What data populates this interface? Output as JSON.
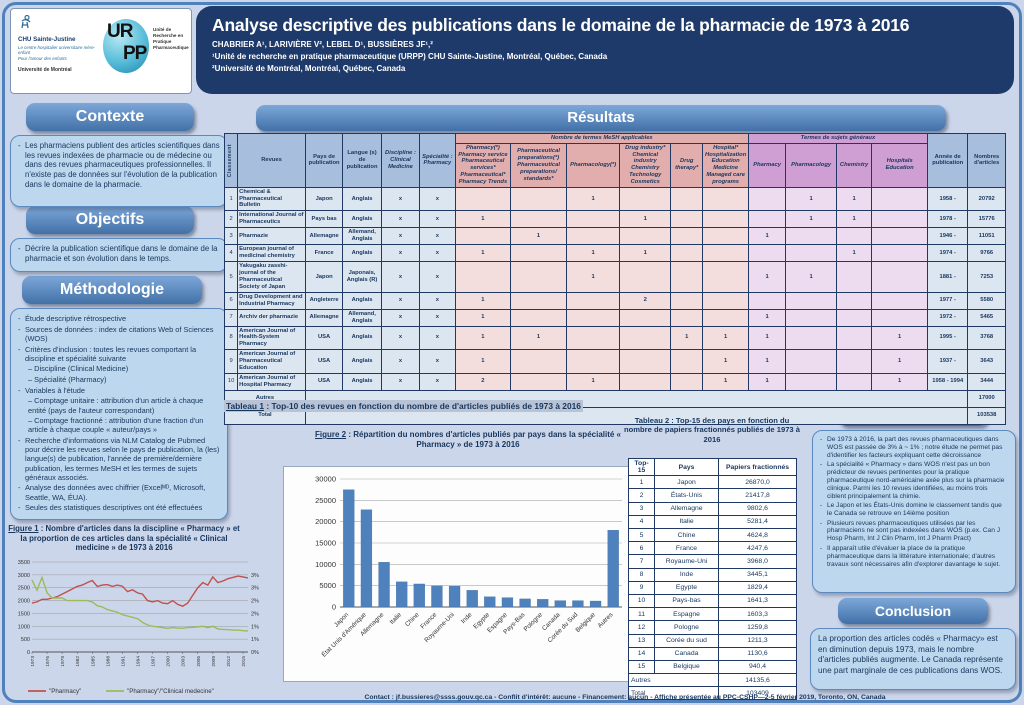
{
  "header": {
    "title": "Analyse descriptive des publications dans le domaine de la pharmacie de 1973 à 2016",
    "authors": "CHABRIER A¹, LARIVIÈRE V², LEBEL D¹, BUSSIÈRES JF¹,²",
    "affiliation1": "¹Unité de recherche en pratique pharmaceutique (URPP) CHU Sainte-Justine, Montréal, Québec, Canada",
    "affiliation2": "²Université de Montréal, Montréal, Québec, Canada",
    "logo": {
      "chu_name": "CHU Sainte-Justine",
      "chu_sub": "Le centre hospitalier universitaire mère-enfant",
      "chu_tag": "Pour l'amour des enfants",
      "udem": "Université de Montréal",
      "urpp_top": "UR",
      "urpp_bottom": "PP",
      "urpp_name": "Unité de Recherche en Pratique Pharmaceutique"
    }
  },
  "contexte": {
    "heading": "Contexte",
    "bullets": [
      "Les pharmaciens publient des articles scientifiques dans les revues indexées de pharmacie ou de médecine ou dans des revues pharmaceutiques professionnelles. Il n'existe pas de données sur l'évolution de la publication dans le domaine de la pharmacie."
    ]
  },
  "objectifs": {
    "heading": "Objectifs",
    "bullets": [
      "Décrire la publication scientifique dans le domaine de la pharmacie et son  évolution dans le temps."
    ]
  },
  "methodologie": {
    "heading": "Méthodologie",
    "items": [
      {
        "t": "Étude descriptive rétrospective",
        "indent": 0
      },
      {
        "t": "Sources de données : index de citations Web of Sciences (WOS)",
        "indent": 0
      },
      {
        "t": "Critères d'inclusion : toutes les revues comportant la discipline et spécialité suivante",
        "indent": 0
      },
      {
        "t": "– Discipline (Clinical Medicine)",
        "indent": 1
      },
      {
        "t": "– Spécialité (Pharmacy)",
        "indent": 1
      },
      {
        "t": "Variables à l'étude",
        "indent": 0
      },
      {
        "t": "– Comptage unitaire : attribution d'un article à chaque entité (pays de l'auteur correspondant)",
        "indent": 1
      },
      {
        "t": "– Comptage fractionné : attribution d'une fraction d'un article à chaque couple « auteur/pays »",
        "indent": 1
      },
      {
        "t": "Recherche d'informations via NLM Catalog de Pubmed pour décrire les revues selon le pays de publication, la (les) langue(s) de publication,  l'année de première/dernière publication, les termes MeSH et les termes de sujets généraux associés.",
        "indent": 0
      },
      {
        "t": "Analyse des données avec chiffrier (Excelᴹᴰ, Microsoft, Seattle, WA, ÉUA).",
        "indent": 0
      },
      {
        "t": "Seules des statistiques descriptives ont été effectuées",
        "indent": 0
      }
    ]
  },
  "resultats": {
    "heading": "Résultats"
  },
  "discussion": {
    "heading": "Discussion",
    "bullets": [
      "De 1973 à 2016, la part des revues pharmaceutiques dans WOS est passée de 3% à ~ 1% ; notre étude ne permet pas d'identifier les facteurs expliquant cette décroissance",
      "La spécialité « Pharmacy » dans WOS n'est pas un bon prédicteur de revues pertinentes pour la pratique pharmaceutique nord-américaine axée plus sur la pharmacie clinique.  Parmi les 10  revues identifiées, au moins trois ciblent principalement la chimie.",
      "Le Japon et les États-Unis domine le classement tandis que le Canada se retrouve en 14ième position",
      "Plusieurs revues pharmaceutiques utilisées par les pharmaciens ne sont pas indexées dans WOS (p.ex. Can J Hosp Pharm, Int J Clin Pharm, Int J Pharm Pract)",
      "Il apparaît utile d'évaluer la place de la pratique pharmaceutique dans la littérature internationale; d'autres travaux  sont nécessaires afin d'explorer davantage le sujet."
    ]
  },
  "conclusion": {
    "heading": "Conclusion",
    "text": "La proportion des articles codés « Pharmacy» est en diminution depuis 1973, mais le nombre d'articles publiés augmente. Le Canada représente une part marginale de ces publications dans WOS."
  },
  "figures": {
    "fig1_label": "Figure 1",
    "fig1_text": " : Nombre d'articles dans la discipline « Pharmacy » et la proportion de ces articles dans la spécialité « Clinical medicine » de 1973 à 2016",
    "fig2_label": "Figure 2",
    "fig2_text": " : Répartition du nombres d'articles publiés par pays dans la spécialité « Pharmacy » de 1973 à 2016"
  },
  "tableau1": {
    "caption_label": "Tableau 1",
    "caption_text": " : Top-10 des revues en fonction du nombre de d'articles publiés de 1973 à 2016",
    "headers": {
      "col_classement": "Classement",
      "col_revues": "Revues",
      "col_pays": "Pays de publication",
      "col_langue": "Langue (s) de publication",
      "col_discipline": "Discipline :\nClinical\nMedicine",
      "col_specialite": "Spécialité :\nPharmacy",
      "group_mesh": "Nombre de termes MeSH applicables",
      "mesh_cols": [
        "Pharmacy(*)\nPharmacy service\nPharmaceutical\nservices*\nPharmaceutical*\nPharmacy Trends",
        "Pharmaceutical\npreparations(*)\nPharmaceutical\npreparations/\nstandards*",
        "Pharmacology(*)",
        "Drug industry*\nChemical\nindustry\nChemistry\nTechnology\nCosmetics",
        "Drug\ntherapy*",
        "Hospital*\nHospitalization\nEducation\nMedicine\nManaged care\nprograms"
      ],
      "group_termes": "Termes de sujets généraux",
      "termes_cols": [
        "Pharmacy",
        "Pharmacology",
        "Chemistry",
        "Hospitals\nEducation"
      ],
      "col_annee": "Année de publication",
      "col_nombres": "Nombres d'articles"
    },
    "rows": [
      {
        "rank": "1",
        "revue": "Chemical & Pharmaceutical Bulletin",
        "pays": "Japon",
        "langue": "Anglais",
        "discipline": "x",
        "specialite": "x",
        "mesh": [
          "",
          "",
          "1",
          "",
          "",
          ""
        ],
        "termes": [
          "",
          "1",
          "1",
          ""
        ],
        "annee": "1958 -",
        "articles": "20792"
      },
      {
        "rank": "2",
        "revue": "International Journal of Pharmaceutics",
        "pays": "Pays bas",
        "langue": "Anglais",
        "discipline": "x",
        "specialite": "x",
        "mesh": [
          "1",
          "",
          "",
          "1",
          "",
          ""
        ],
        "termes": [
          "",
          "1",
          "1",
          ""
        ],
        "annee": "1978 -",
        "articles": "15776"
      },
      {
        "rank": "3",
        "revue": "Pharmazie",
        "pays": "Allemagne",
        "langue": "Allemand, Anglais",
        "discipline": "x",
        "specialite": "x",
        "mesh": [
          "",
          "1",
          "",
          "",
          "",
          ""
        ],
        "termes": [
          "1",
          "",
          "",
          ""
        ],
        "annee": "1946 -",
        "articles": "11051"
      },
      {
        "rank": "4",
        "revue": "European journal of medicinal chemistry",
        "pays": "France",
        "langue": "Anglais",
        "discipline": "x",
        "specialite": "x",
        "mesh": [
          "1",
          "",
          "1",
          "1",
          "",
          ""
        ],
        "termes": [
          "",
          "",
          "1",
          ""
        ],
        "annee": "1974 -",
        "articles": "9766"
      },
      {
        "rank": "5",
        "revue": "Yakugaku zasshi-journal of the Pharmaceutical Society of Japan",
        "pays": "Japon",
        "langue": "Japonais, Anglais (R)",
        "discipline": "x",
        "specialite": "x",
        "mesh": [
          "",
          "",
          "1",
          "",
          "",
          ""
        ],
        "termes": [
          "1",
          "1",
          "",
          ""
        ],
        "annee": "1881 -",
        "articles": "7253"
      },
      {
        "rank": "6",
        "revue": "Drug Development and Industrial Pharmacy",
        "pays": "Angleterre",
        "langue": "Anglais",
        "discipline": "x",
        "specialite": "x",
        "mesh": [
          "1",
          "",
          "",
          "2",
          "",
          ""
        ],
        "termes": [
          "",
          "",
          "",
          ""
        ],
        "annee": "1977 -",
        "articles": "5580"
      },
      {
        "rank": "7",
        "revue": "Archiv der pharmazie",
        "pays": "Allemagne",
        "langue": "Allemand, Anglais",
        "discipline": "x",
        "specialite": "x",
        "mesh": [
          "1",
          "",
          "",
          "",
          "",
          ""
        ],
        "termes": [
          "1",
          "",
          "",
          ""
        ],
        "annee": "1972 -",
        "articles": "5465"
      },
      {
        "rank": "8",
        "revue": "American Journal of Health-System Pharmacy",
        "pays": "USA",
        "langue": "Anglais",
        "discipline": "x",
        "specialite": "x",
        "mesh": [
          "1",
          "1",
          "",
          "",
          "1",
          "1"
        ],
        "termes": [
          "1",
          "",
          "",
          "1"
        ],
        "annee": "1995 -",
        "articles": "3768"
      },
      {
        "rank": "9",
        "revue": "American Journal of Pharmaceutical Education",
        "pays": "USA",
        "langue": "Anglais",
        "discipline": "x",
        "specialite": "x",
        "mesh": [
          "1",
          "",
          "",
          "",
          "",
          "1"
        ],
        "termes": [
          "1",
          "",
          "",
          "1"
        ],
        "annee": "1937 -",
        "articles": "3643"
      },
      {
        "rank": "10",
        "revue": "American Journal of Hospital Pharmacy",
        "pays": "USA",
        "langue": "Anglais",
        "discipline": "x",
        "specialite": "x",
        "mesh": [
          "2",
          "",
          "1",
          "",
          "",
          "1"
        ],
        "termes": [
          "1",
          "",
          "",
          "1"
        ],
        "annee": "1958 - 1994",
        "articles": "3444"
      }
    ],
    "autres_label": "Autres",
    "autres_value": "17000",
    "total_label": "Total",
    "total_value": "103538"
  },
  "tableau2": {
    "caption_label": "Tableau 2",
    "caption_text": " : Top-15 des pays en fonction du nombre de papiers fractionnés publiés de 1973 à 2016",
    "headers": [
      "Top-15",
      "Pays",
      "Papiers fractionnés"
    ],
    "rows": [
      [
        "1",
        "Japon",
        "26870,0"
      ],
      [
        "2",
        "États-Unis",
        "21417,8"
      ],
      [
        "3",
        "Allemagne",
        "9802,6"
      ],
      [
        "4",
        "Italie",
        "5281,4"
      ],
      [
        "5",
        "Chine",
        "4624,8"
      ],
      [
        "6",
        "France",
        "4247,6"
      ],
      [
        "7",
        "Royaume-Uni",
        "3968,0"
      ],
      [
        "8",
        "Inde",
        "3445,1"
      ],
      [
        "9",
        "Egypte",
        "1829,4"
      ],
      [
        "10",
        "Pays-bas",
        "1641,3"
      ],
      [
        "11",
        "Espagne",
        "1603,3"
      ],
      [
        "12",
        "Pologne",
        "1259,8"
      ],
      [
        "13",
        "Corée du sud",
        "1211,3"
      ],
      [
        "14",
        "Canada",
        "1130,6"
      ],
      [
        "15",
        "Belgique",
        "940,4"
      ]
    ],
    "autres_label": "Autres",
    "autres_value": "14135,6",
    "total_label": "Total",
    "total_value": "103409"
  },
  "footer": {
    "text": "Contact : jf.bussieres@ssss.gouv.qc.ca - Conflit d'intérêt: aucune - Financement: aucun  - Affiche présentée au PPC-CSHP—2-5 février 2019, Toronto, ON, Canada"
  },
  "chart_data": [
    {
      "id": "figure1",
      "type": "line",
      "title": "Nombre d'articles dans la discipline « Pharmacy » et la proportion de ces articles dans la spécialité « Clinical medicine » de 1973 à 2016",
      "x": [
        1973,
        1974,
        1975,
        1976,
        1977,
        1978,
        1979,
        1980,
        1981,
        1982,
        1983,
        1984,
        1985,
        1986,
        1987,
        1988,
        1989,
        1990,
        1991,
        1992,
        1993,
        1994,
        1995,
        1996,
        1997,
        1998,
        1999,
        2000,
        2001,
        2002,
        2003,
        2004,
        2005,
        2006,
        2007,
        2008,
        2009,
        2010,
        2011,
        2012,
        2013,
        2014,
        2015,
        2016
      ],
      "xticks": [
        1973,
        1976,
        1979,
        1982,
        1985,
        1988,
        1991,
        1994,
        1997,
        2000,
        2003,
        2006,
        2009,
        2012,
        2015
      ],
      "ylim_left": [
        0,
        3500
      ],
      "ytick_left": 500,
      "ylim_right_pct": [
        0,
        3.5
      ],
      "right_labels": [
        "0%",
        "1%",
        "1%",
        "2%",
        "2%",
        "3%",
        "3%"
      ],
      "grid": true,
      "legend_position": "bottom",
      "series": [
        {
          "name": "\"Pharmacy\"",
          "axis": "left",
          "color": "#c0504d",
          "values": [
            1900,
            1950,
            2050,
            2050,
            2100,
            2150,
            2250,
            2350,
            2450,
            2550,
            2600,
            2700,
            2780,
            2550,
            2600,
            2620,
            2550,
            2600,
            2560,
            2350,
            2420,
            2300,
            2250,
            2000,
            1950,
            2000,
            1900,
            1880,
            2000,
            1850,
            1780,
            1900,
            2200,
            2500,
            2700,
            2600,
            2920,
            2700,
            2760,
            2850,
            2900,
            2950,
            2920,
            2880
          ]
        },
        {
          "name": "\"Pharmacy\"/\"Clinical medecine\"",
          "axis": "right",
          "color": "#9bbb59",
          "values": [
            2.8,
            2.4,
            2.9,
            2.3,
            2.1,
            2.1,
            2.1,
            2.0,
            2.0,
            2.0,
            2.0,
            2.0,
            1.95,
            1.8,
            1.75,
            1.65,
            1.6,
            1.55,
            1.45,
            1.4,
            1.35,
            1.3,
            1.15,
            1.05,
            1.0,
            0.98,
            0.95,
            0.92,
            0.95,
            0.93,
            0.92,
            0.95,
            0.96,
            0.98,
            1.0,
            0.95,
            1.0,
            0.9,
            0.88,
            0.87,
            0.85,
            0.85,
            0.83,
            0.82
          ]
        }
      ]
    },
    {
      "id": "figure2",
      "type": "bar",
      "title": "Répartition du nombres d'articles publiés par pays dans la spécialité « Pharmacy » de 1973 à 2016",
      "categories": [
        "Japon",
        "État Unis d'Amérique",
        "Allemagne",
        "Italie",
        "Chine",
        "France",
        "Royaume-Uni",
        "Inde",
        "Egypte",
        "Espagne",
        "Pays-Bas",
        "Pologne",
        "Canada",
        "Corée du Sud",
        "Belgique",
        "Autres"
      ],
      "values": [
        27500,
        22800,
        10500,
        5900,
        5400,
        5000,
        4900,
        3900,
        2400,
        2200,
        1900,
        1800,
        1500,
        1500,
        1400,
        18000
      ],
      "color": "#4f81bd",
      "ylim": [
        0,
        30000
      ],
      "ytick": 5000,
      "grid": true
    }
  ]
}
